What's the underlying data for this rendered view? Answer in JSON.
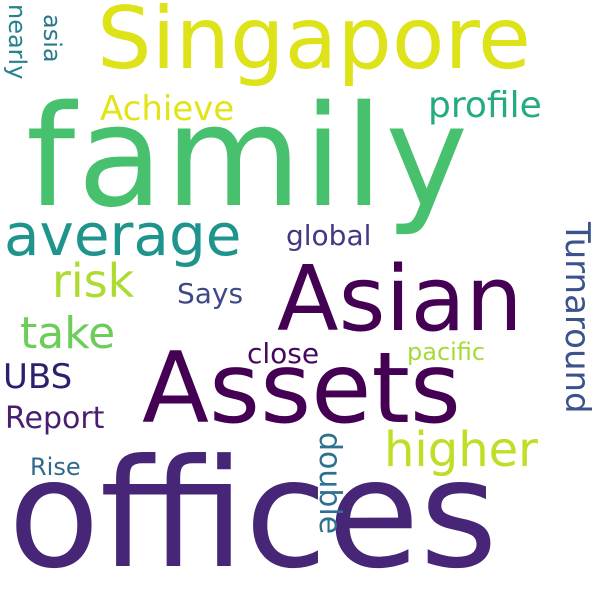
{
  "words": [
    {
      "text": "family",
      "color": "#48c16e"
    },
    {
      "text": "offices",
      "color": "#482677"
    },
    {
      "text": "Assets",
      "color": "#440154"
    },
    {
      "text": "Asian",
      "color": "#440154"
    },
    {
      "text": "Singapore",
      "color": "#dde318"
    },
    {
      "text": "average",
      "color": "#1f948c"
    },
    {
      "text": "higher",
      "color": "#bddf26"
    },
    {
      "text": "take",
      "color": "#6ccd5a"
    },
    {
      "text": "risk",
      "color": "#addc30"
    },
    {
      "text": "Turnaround",
      "color": "#3b528b"
    },
    {
      "text": "profile",
      "color": "#25ab82"
    },
    {
      "text": "Achieve",
      "color": "#e3e418"
    },
    {
      "text": "global",
      "color": "#453781"
    },
    {
      "text": "Says",
      "color": "#3e4989"
    },
    {
      "text": "UBS",
      "color": "#2d1e6e"
    },
    {
      "text": "Report",
      "color": "#481f70"
    },
    {
      "text": "close",
      "color": "#46085c"
    },
    {
      "text": "pacific",
      "color": "#a5db36"
    },
    {
      "text": "double",
      "color": "#2c728e"
    },
    {
      "text": "Rise",
      "color": "#31688e"
    },
    {
      "text": "nearly",
      "color": "#26828e"
    },
    {
      "text": "asia",
      "color": "#2a788e"
    }
  ]
}
